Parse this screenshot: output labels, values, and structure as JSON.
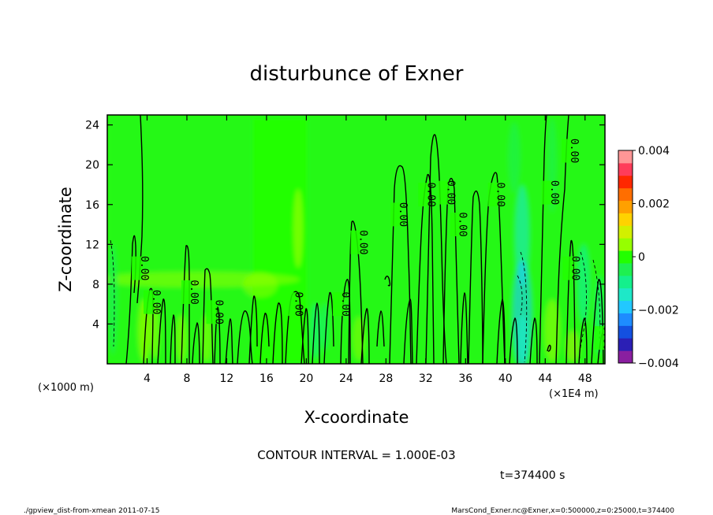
{
  "chart_data": {
    "type": "heatmap",
    "title": "disturbunce of Exner",
    "xlabel": "X-coordinate",
    "ylabel": "Z-coordinate",
    "x_unit_left": "(×1000 m)",
    "x_unit_right": "(×1E4 m)",
    "xlim": [
      0,
      50
    ],
    "ylim": [
      0,
      25
    ],
    "x_ticks": [
      4,
      8,
      12,
      16,
      20,
      24,
      28,
      32,
      36,
      40,
      44,
      48
    ],
    "y_ticks": [
      4,
      8,
      12,
      16,
      20,
      24
    ],
    "colorbar": {
      "range": [
        -0.004,
        0.004
      ],
      "tick_values": [
        0.004,
        0.002,
        0,
        -0.002,
        -0.004
      ],
      "tick_labels": [
        "0.004",
        "0.002",
        "0",
        "−0.002",
        "−0.004"
      ],
      "colors": [
        "#8a1fa0",
        "#2b1fb5",
        "#1450e0",
        "#1e8cff",
        "#22c8ff",
        "#1ee8c8",
        "#14f08c",
        "#1ef050",
        "#22ff00",
        "#96ff00",
        "#d2f000",
        "#ffd200",
        "#ffa000",
        "#ff6e00",
        "#ff2800",
        "#ff3c5a",
        "#ff9696"
      ]
    },
    "contour_interval_text": "CONTOUR INTERVAL = 1.000E-03",
    "contour_label": "0.00",
    "contour_label_positions": [
      {
        "x": 3.0,
        "z": 9.6
      },
      {
        "x": 4.2,
        "z": 6.2
      },
      {
        "x": 8.0,
        "z": 7.2
      },
      {
        "x": 10.5,
        "z": 5.2
      },
      {
        "x": 18.5,
        "z": 6.0
      },
      {
        "x": 23.2,
        "z": 6.0
      },
      {
        "x": 25.0,
        "z": 12.2
      },
      {
        "x": 29.0,
        "z": 15.0
      },
      {
        "x": 31.8,
        "z": 17.0
      },
      {
        "x": 33.8,
        "z": 17.2
      },
      {
        "x": 35.0,
        "z": 14.0
      },
      {
        "x": 38.8,
        "z": 17.0
      },
      {
        "x": 44.2,
        "z": 17.2
      },
      {
        "x": 46.2,
        "z": 21.4
      },
      {
        "x": 46.3,
        "z": 9.6
      },
      {
        "x": 49.5,
        "z": 2.6
      }
    ],
    "time_text": "t=374400 s"
  },
  "footer": {
    "left": "./gpview_dist-from-xmean  2011-07-15",
    "right": "MarsCond_Exner.nc@Exner,x=0:500000,z=0:25000,t=374400"
  }
}
